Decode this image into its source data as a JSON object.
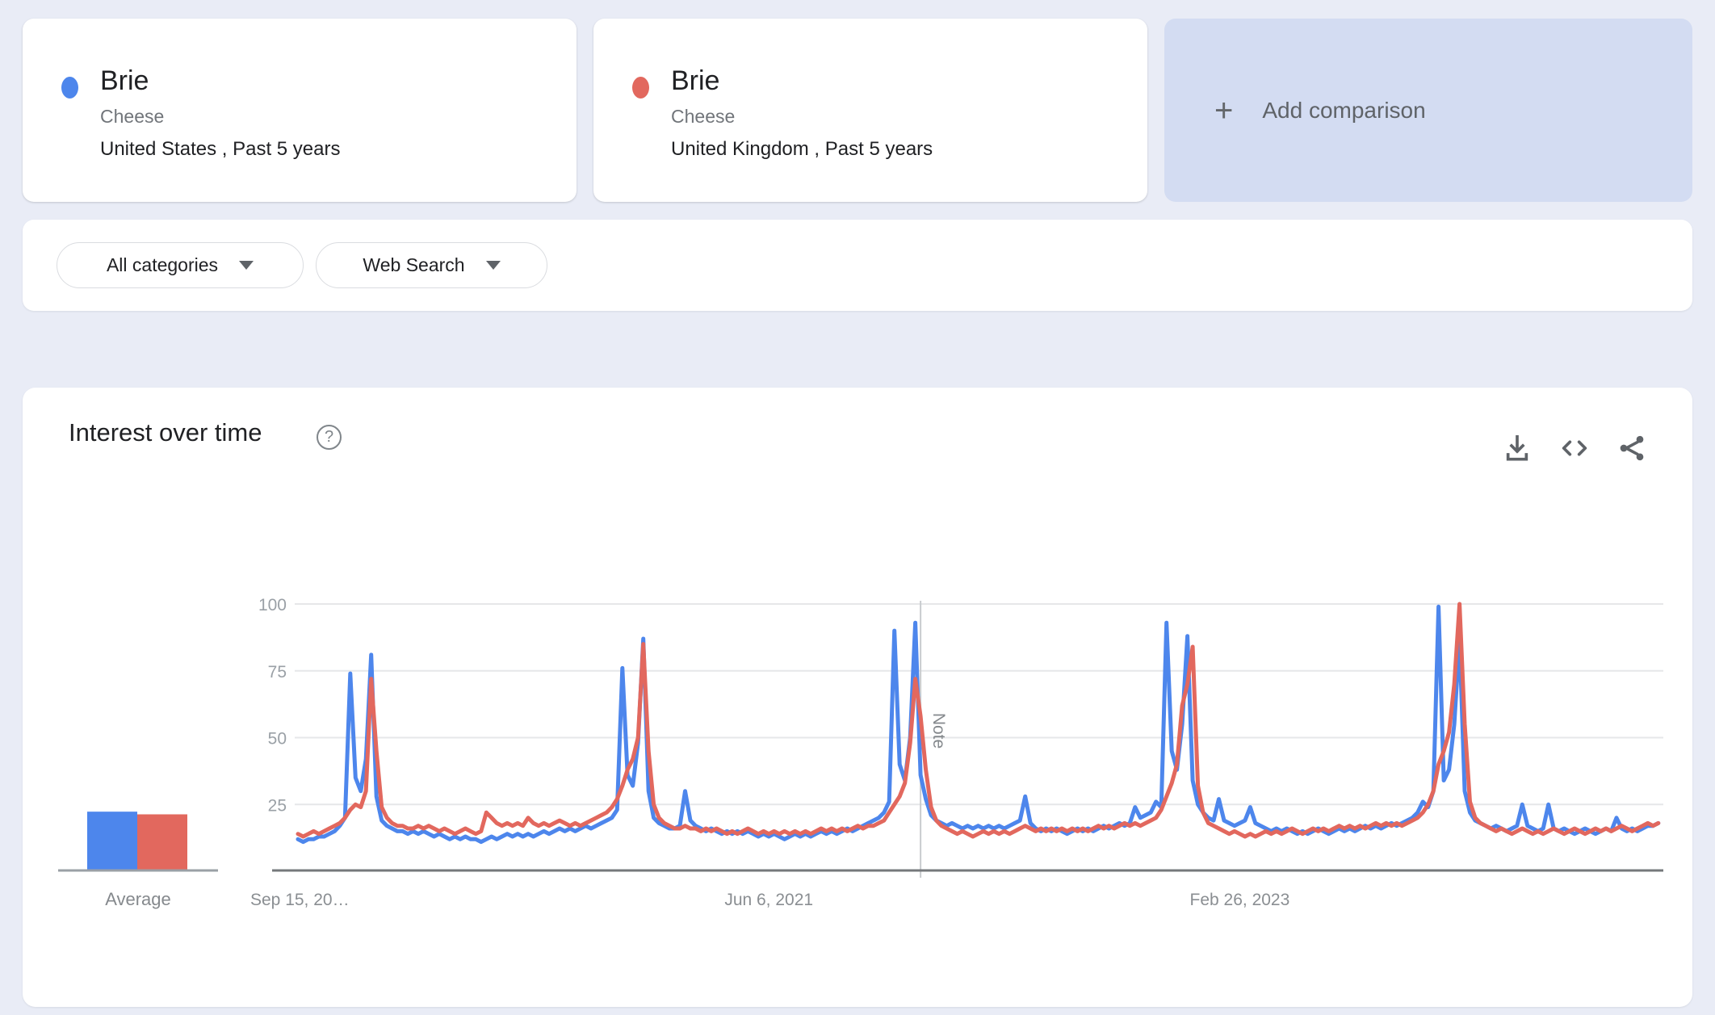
{
  "comparison_cards": [
    {
      "keyword": "Brie",
      "type": "Cheese",
      "scope": "United States , Past 5 years",
      "color": "#4d86ec"
    },
    {
      "keyword": "Brie",
      "type": "Cheese",
      "scope": "United Kingdom , Past 5 years",
      "color": "#e2685e"
    }
  ],
  "add_comparison": {
    "plus": "+",
    "label": "Add comparison"
  },
  "filters": {
    "category": "All categories",
    "search_type": "Web Search"
  },
  "chart_panel": {
    "title": "Interest over time",
    "help_glyph": "?"
  },
  "chart_data": {
    "type": "line",
    "title": "Interest over time",
    "xlabel": "",
    "ylabel": "",
    "ylim": [
      0,
      100
    ],
    "grid": true,
    "y_ticks": [
      25,
      50,
      75,
      100
    ],
    "x_ticks": [
      {
        "label": "Sep 15, 20…",
        "week": 0,
        "anchor": "start"
      },
      {
        "label": "Jun 6, 2021",
        "week": 90,
        "anchor": "middle"
      },
      {
        "label": "Feb 26, 2023",
        "week": 180,
        "anchor": "middle"
      }
    ],
    "note": {
      "label": "Note",
      "week": 119
    },
    "average_label": "Average",
    "x_unit": "weeks since 2019-09-15",
    "series": [
      {
        "name": "Brie (United States)",
        "color": "#4d86ec",
        "average": 22,
        "values": [
          12,
          11,
          12,
          12,
          13,
          13,
          14,
          15,
          17,
          20,
          74,
          35,
          30,
          42,
          81,
          28,
          19,
          17,
          16,
          15,
          15,
          14,
          15,
          14,
          15,
          14,
          13,
          14,
          13,
          12,
          13,
          12,
          13,
          12,
          12,
          11,
          12,
          13,
          12,
          13,
          14,
          13,
          14,
          13,
          14,
          13,
          14,
          15,
          14,
          15,
          16,
          15,
          16,
          15,
          16,
          17,
          16,
          17,
          18,
          19,
          20,
          23,
          76,
          36,
          32,
          48,
          87,
          30,
          20,
          18,
          17,
          16,
          16,
          17,
          30,
          19,
          17,
          16,
          15,
          16,
          15,
          14,
          15,
          14,
          15,
          14,
          15,
          14,
          13,
          14,
          13,
          14,
          13,
          12,
          13,
          14,
          13,
          14,
          13,
          14,
          15,
          14,
          15,
          14,
          15,
          16,
          15,
          16,
          17,
          18,
          19,
          20,
          22,
          26,
          90,
          40,
          34,
          50,
          93,
          36,
          27,
          21,
          19,
          18,
          17,
          18,
          17,
          16,
          17,
          16,
          17,
          16,
          17,
          16,
          17,
          16,
          17,
          18,
          19,
          28,
          18,
          16,
          15,
          16,
          15,
          16,
          15,
          14,
          15,
          16,
          15,
          16,
          15,
          16,
          17,
          16,
          17,
          18,
          17,
          18,
          24,
          20,
          21,
          22,
          26,
          24,
          93,
          45,
          38,
          55,
          88,
          34,
          25,
          22,
          20,
          19,
          27,
          19,
          18,
          17,
          18,
          19,
          24,
          18,
          17,
          16,
          15,
          16,
          15,
          16,
          15,
          14,
          15,
          14,
          15,
          16,
          15,
          14,
          15,
          16,
          15,
          16,
          15,
          16,
          17,
          16,
          17,
          16,
          17,
          18,
          17,
          18,
          19,
          20,
          22,
          26,
          24,
          30,
          99,
          34,
          38,
          55,
          87,
          30,
          22,
          19,
          18,
          17,
          16,
          17,
          16,
          15,
          16,
          17,
          25,
          17,
          16,
          15,
          16,
          25,
          16,
          15,
          16,
          15,
          14,
          15,
          16,
          15,
          14,
          15,
          16,
          15,
          20,
          16,
          15,
          16,
          15,
          16,
          17,
          17,
          18
        ]
      },
      {
        "name": "Brie (United Kingdom)",
        "color": "#e2685e",
        "average": 21,
        "values": [
          14,
          13,
          14,
          15,
          14,
          15,
          16,
          17,
          18,
          20,
          23,
          25,
          24,
          30,
          72,
          45,
          24,
          20,
          18,
          17,
          17,
          16,
          16,
          17,
          16,
          17,
          16,
          15,
          16,
          15,
          14,
          15,
          16,
          15,
          14,
          15,
          22,
          20,
          18,
          17,
          18,
          17,
          18,
          17,
          20,
          18,
          17,
          18,
          17,
          18,
          19,
          18,
          17,
          18,
          17,
          18,
          19,
          20,
          21,
          22,
          24,
          27,
          32,
          38,
          42,
          50,
          85,
          45,
          25,
          20,
          18,
          17,
          16,
          16,
          17,
          16,
          16,
          15,
          16,
          15,
          16,
          15,
          14,
          15,
          14,
          15,
          16,
          15,
          14,
          15,
          14,
          15,
          14,
          15,
          14,
          15,
          14,
          15,
          14,
          15,
          16,
          15,
          16,
          15,
          16,
          15,
          16,
          17,
          16,
          17,
          17,
          18,
          19,
          22,
          25,
          28,
          33,
          48,
          72,
          58,
          38,
          24,
          19,
          17,
          16,
          15,
          14,
          15,
          14,
          13,
          14,
          15,
          14,
          15,
          14,
          15,
          14,
          15,
          16,
          17,
          16,
          15,
          16,
          15,
          16,
          15,
          16,
          15,
          16,
          15,
          16,
          15,
          16,
          17,
          16,
          17,
          16,
          17,
          18,
          17,
          18,
          17,
          18,
          19,
          20,
          23,
          28,
          33,
          40,
          62,
          70,
          84,
          32,
          22,
          18,
          17,
          16,
          15,
          14,
          15,
          14,
          13,
          14,
          13,
          14,
          15,
          14,
          15,
          14,
          15,
          16,
          15,
          14,
          15,
          16,
          15,
          16,
          15,
          16,
          17,
          16,
          17,
          16,
          17,
          16,
          17,
          18,
          17,
          18,
          17,
          18,
          17,
          18,
          19,
          20,
          22,
          25,
          30,
          40,
          45,
          52,
          70,
          100,
          55,
          26,
          20,
          18,
          17,
          16,
          15,
          16,
          15,
          14,
          15,
          16,
          15,
          14,
          15,
          14,
          15,
          16,
          15,
          14,
          15,
          16,
          15,
          14,
          15,
          16,
          15,
          16,
          15,
          16,
          17,
          16,
          15,
          16,
          17,
          18,
          17,
          18
        ]
      }
    ]
  }
}
